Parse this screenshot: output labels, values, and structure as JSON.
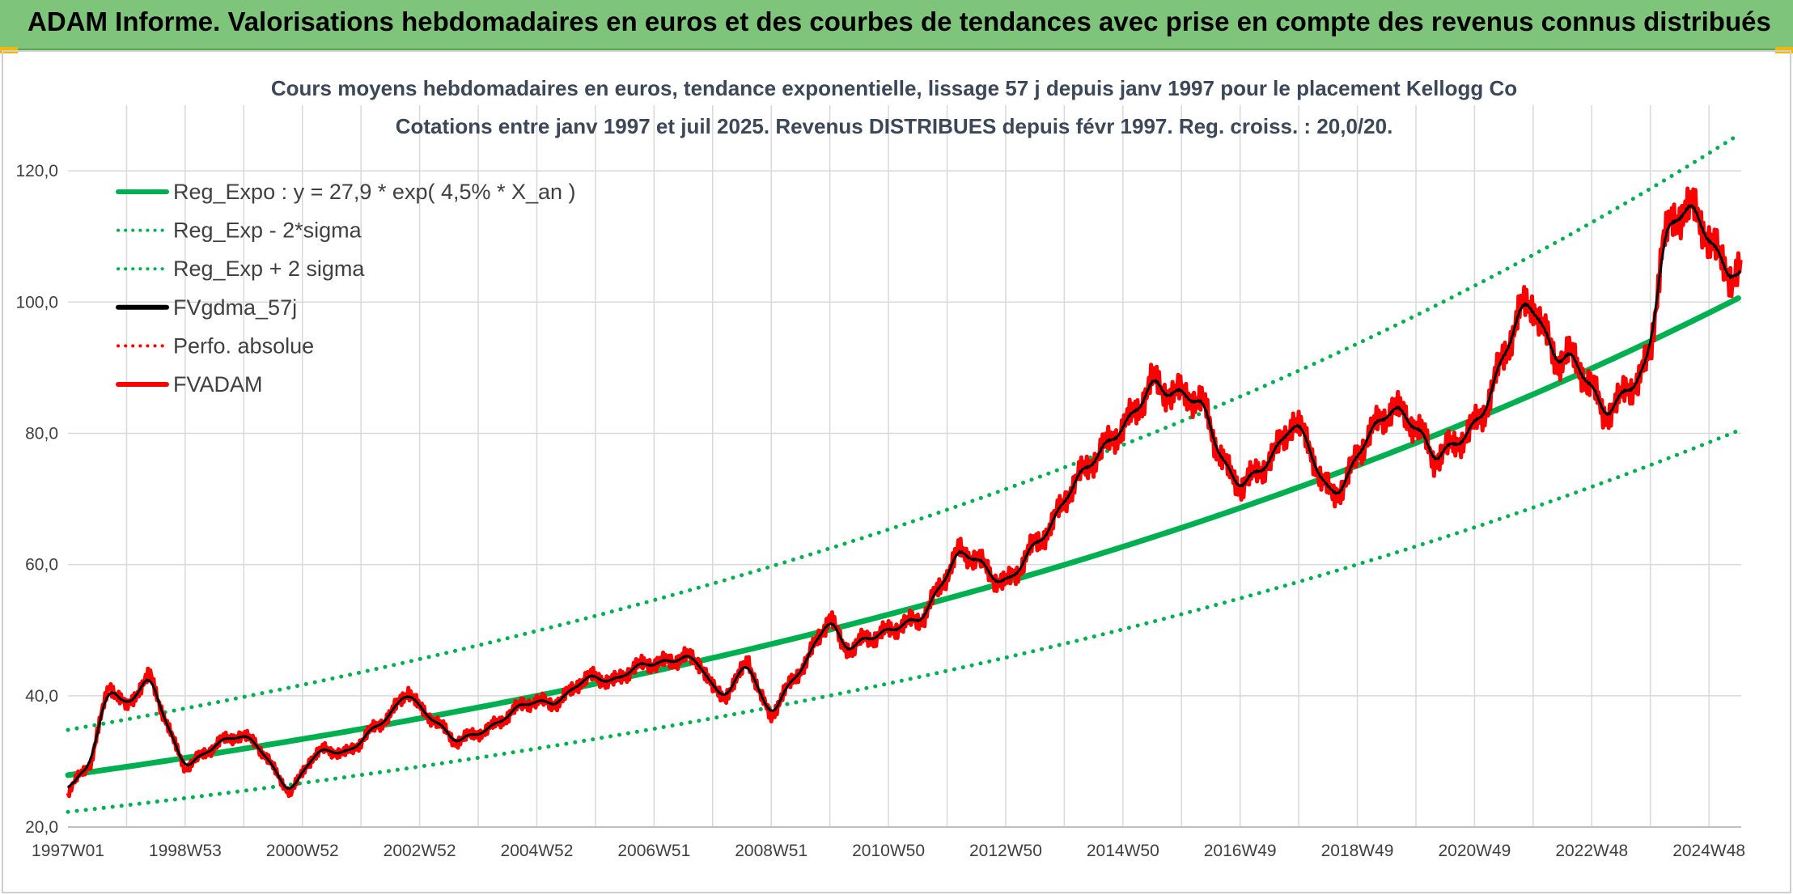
{
  "banner": {
    "title": "ADAM Informe. Valorisations hebdomadaires en euros et des courbes de tendances avec prise en compte des revenus connus distribués"
  },
  "chart_data": {
    "type": "line",
    "title": "Cours moyens hebdomadaires en euros, tendance exponentielle, lissage 57 j depuis janv 1997 pour le placement Kellogg Co",
    "subtitle": "Cotations entre janv 1997 et juil 2025. Revenus DISTRIBUES depuis févr 1997. Reg. croiss. : 20,0/20.",
    "xlabel": "",
    "ylabel": "",
    "ylim": [
      20,
      130
    ],
    "xlim": [
      1997.0,
      2025.55
    ],
    "grid": true,
    "legend_position": "top-left",
    "y_ticks": [
      "20,0",
      "40,0",
      "60,0",
      "80,0",
      "100,0",
      "120,0"
    ],
    "y_tick_values": [
      20,
      40,
      60,
      80,
      100,
      120
    ],
    "x_ticks": [
      "1997W01",
      "1998W53",
      "2000W52",
      "2002W52",
      "2004W52",
      "2006W51",
      "2008W51",
      "2010W50",
      "2012W50",
      "2014W50",
      "2016W49",
      "2018W49",
      "2020W49",
      "2022W48",
      "2024W48"
    ],
    "x_tick_values": [
      1997.0,
      1999.0,
      2001.0,
      2003.0,
      2005.0,
      2007.0,
      2009.0,
      2011.0,
      2013.0,
      2015.0,
      2017.0,
      2019.0,
      2021.0,
      2023.0,
      2025.0
    ],
    "colors": {
      "green": "#00b050",
      "black": "#000000",
      "red": "#ff0000",
      "grid": "#d9d9d9",
      "banner": "#7ec47a"
    },
    "series": [
      {
        "name": "Reg_Expo : y = 27,9 * exp( 4,5% *  X_an )",
        "kind": "regression",
        "a": 27.9,
        "b": 0.045,
        "offset": 0,
        "color": "#00b050",
        "style": "solid"
      },
      {
        "name": "Reg_Exp - 2*sigma",
        "kind": "regression",
        "a": 22.3,
        "b": 0.045,
        "offset": 0,
        "color": "#00b050",
        "style": "dotted"
      },
      {
        "name": "Reg_Exp + 2 sigma",
        "kind": "regression",
        "a": 34.8,
        "b": 0.045,
        "offset": 0,
        "color": "#00b050",
        "style": "dotted"
      },
      {
        "name": "FVgdma_57j",
        "kind": "smooth",
        "color": "#000000",
        "style": "solid"
      },
      {
        "name": "Perfo. absolue",
        "kind": "none",
        "color": "#ff0000",
        "style": "dotted"
      },
      {
        "name": "FVADAM",
        "kind": "data",
        "color": "#ff0000",
        "style": "solid",
        "x": [
          1997.0,
          1997.2,
          1997.4,
          1997.55,
          1997.7,
          1997.85,
          1998.0,
          1998.2,
          1998.4,
          1998.6,
          1998.8,
          1999.0,
          1999.3,
          1999.6,
          1999.9,
          2000.2,
          2000.5,
          2000.8,
          2001.1,
          2001.4,
          2001.7,
          2002.0,
          2002.2,
          2002.5,
          2002.8,
          2003.0,
          2003.3,
          2003.6,
          2003.9,
          2004.2,
          2004.5,
          2004.8,
          2005.1,
          2005.4,
          2005.7,
          2006.0,
          2006.3,
          2006.6,
          2006.9,
          2007.2,
          2007.5,
          2007.8,
          2008.0,
          2008.2,
          2008.4,
          2008.6,
          2008.8,
          2009.0,
          2009.2,
          2009.4,
          2009.6,
          2009.8,
          2010.0,
          2010.2,
          2010.4,
          2010.6,
          2010.8,
          2011.0,
          2011.3,
          2011.6,
          2011.9,
          2012.2,
          2012.5,
          2012.8,
          2013.0,
          2013.2,
          2013.4,
          2013.6,
          2013.8,
          2014.0,
          2014.3,
          2014.6,
          2014.9,
          2015.2,
          2015.5,
          2015.8,
          2016.1,
          2016.4,
          2016.6,
          2016.8,
          2017.0,
          2017.3,
          2017.6,
          2017.9,
          2018.2,
          2018.4,
          2018.6,
          2018.8,
          2019.0,
          2019.3,
          2019.6,
          2019.9,
          2020.1,
          2020.3,
          2020.6,
          2020.9,
          2021.2,
          2021.5,
          2021.8,
          2022.0,
          2022.2,
          2022.4,
          2022.6,
          2022.8,
          2023.0,
          2023.2,
          2023.4,
          2023.6,
          2023.8,
          2024.0,
          2024.2,
          2024.4,
          2024.6,
          2024.8,
          2025.0,
          2025.2,
          2025.4,
          2025.55
        ],
        "values": [
          25,
          28,
          30,
          36,
          42,
          40,
          38,
          41,
          43,
          38,
          33,
          29,
          31,
          33,
          34,
          33,
          29,
          25,
          30,
          32,
          31,
          33,
          35,
          37,
          41,
          38,
          36,
          33,
          34,
          35,
          37,
          39,
          39,
          39,
          42,
          43,
          42,
          44,
          45,
          45,
          46,
          45,
          41,
          40,
          42,
          46,
          40,
          37,
          40,
          43,
          45,
          49,
          52,
          48,
          47,
          49,
          49,
          50,
          51,
          52,
          57,
          62,
          61,
          58,
          57,
          59,
          62,
          64,
          66,
          70,
          74,
          77,
          80,
          83,
          88,
          86,
          86,
          84,
          78,
          74,
          72,
          74,
          77,
          82,
          78,
          72,
          71,
          72,
          77,
          81,
          84,
          82,
          80,
          76,
          78,
          80,
          84,
          92,
          99,
          100,
          95,
          91,
          92,
          90,
          87,
          83,
          84,
          87,
          88,
          92,
          109,
          112,
          115,
          113,
          110,
          106,
          104,
          105
        ]
      }
    ]
  }
}
